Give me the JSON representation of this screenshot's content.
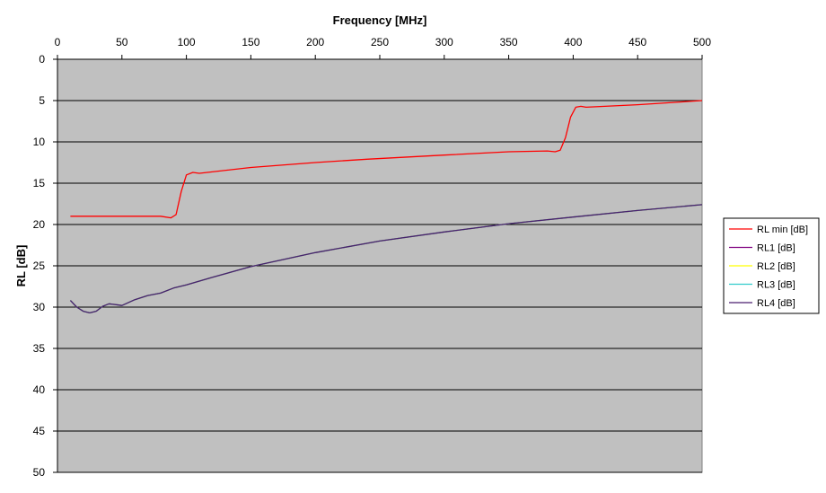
{
  "chart_data": {
    "type": "line",
    "title": "",
    "xlabel": "Frequency [MHz]",
    "ylabel": "RL [dB]",
    "xlim": [
      0,
      500
    ],
    "ylim": [
      0,
      50
    ],
    "y_inverted": true,
    "x_axis_position": "top",
    "x_ticks": [
      0,
      50,
      100,
      150,
      200,
      250,
      300,
      350,
      400,
      450,
      500
    ],
    "y_ticks": [
      0,
      5,
      10,
      15,
      20,
      25,
      30,
      35,
      40,
      45,
      50
    ],
    "grid": "horizontal",
    "plot_background": "#c0c0c0",
    "legend_position": "right",
    "series": [
      {
        "name": "RL min [dB]",
        "color": "#ff0000",
        "x": [
          10,
          50,
          80,
          88,
          92,
          96,
          100,
          105,
          110,
          150,
          200,
          240,
          300,
          350,
          380,
          386,
          390,
          394,
          398,
          402,
          406,
          410,
          450,
          500
        ],
        "y": [
          19,
          19,
          19,
          19.2,
          18.8,
          16,
          14,
          13.7,
          13.8,
          13.1,
          12.5,
          12.1,
          11.6,
          11.2,
          11.1,
          11.2,
          11,
          9.5,
          7,
          5.8,
          5.7,
          5.8,
          5.5,
          5
        ]
      },
      {
        "name": "RL1 [dB]",
        "color": "#7f007f",
        "x": [
          10,
          15,
          20,
          25,
          30,
          35,
          40,
          45,
          50,
          60,
          70,
          80,
          90,
          100,
          120,
          150,
          200,
          250,
          300,
          350,
          400,
          450,
          500
        ],
        "y": [
          29.2,
          30,
          30.5,
          30.7,
          30.5,
          29.9,
          29.6,
          29.7,
          29.8,
          29.1,
          28.6,
          28.3,
          27.7,
          27.3,
          26.4,
          25.1,
          23.4,
          22,
          20.9,
          19.9,
          19.1,
          18.3,
          17.6
        ]
      },
      {
        "name": "RL2 [dB]",
        "color": "#ffff00",
        "x": [
          10,
          15,
          20,
          25,
          30,
          35,
          40,
          45,
          50,
          60,
          70,
          80,
          90,
          100,
          120,
          150,
          200,
          250,
          300,
          350,
          400,
          450,
          500
        ],
        "y": [
          29.2,
          30,
          30.5,
          30.7,
          30.5,
          29.9,
          29.6,
          29.7,
          29.8,
          29.1,
          28.6,
          28.3,
          27.7,
          27.3,
          26.4,
          25.1,
          23.4,
          22,
          20.9,
          19.9,
          19.1,
          18.3,
          17.6
        ]
      },
      {
        "name": "RL3 [dB]",
        "color": "#33cccc",
        "x": [
          10,
          15,
          20,
          25,
          30,
          35,
          40,
          45,
          50,
          60,
          70,
          80,
          90,
          100,
          120,
          150,
          200,
          250,
          300,
          350,
          400,
          450,
          500
        ],
        "y": [
          29.2,
          30,
          30.5,
          30.7,
          30.5,
          29.9,
          29.6,
          29.7,
          29.8,
          29.1,
          28.6,
          28.3,
          27.7,
          27.3,
          26.4,
          25.1,
          23.4,
          22,
          20.9,
          19.9,
          19.1,
          18.3,
          17.6
        ]
      },
      {
        "name": "RL4 [dB]",
        "color": "#4b1f6f",
        "x": [
          10,
          15,
          20,
          25,
          30,
          35,
          40,
          45,
          50,
          60,
          70,
          80,
          90,
          100,
          120,
          150,
          200,
          250,
          300,
          350,
          400,
          450,
          500
        ],
        "y": [
          29.2,
          30,
          30.5,
          30.7,
          30.5,
          29.9,
          29.6,
          29.7,
          29.8,
          29.1,
          28.6,
          28.3,
          27.7,
          27.3,
          26.4,
          25.1,
          23.4,
          22,
          20.9,
          19.9,
          19.1,
          18.3,
          17.6
        ]
      }
    ]
  }
}
